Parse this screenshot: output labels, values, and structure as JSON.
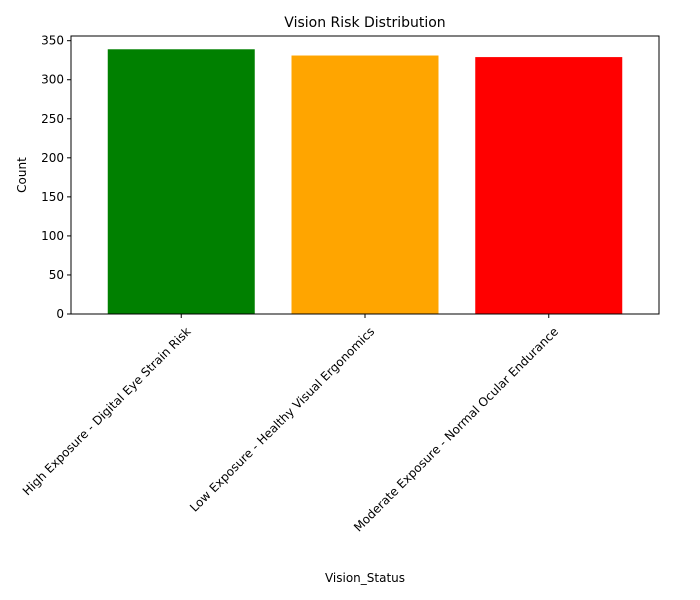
{
  "chart_data": {
    "type": "bar",
    "title": "Vision Risk Distribution",
    "xlabel": "Vision_Status",
    "ylabel": "Count",
    "categories": [
      "High Exposure - Digital Eye Strain Risk",
      "Low Exposure - Healthy Visual Ergonomics",
      "Moderate Exposure - Normal Ocular Endurance"
    ],
    "values": [
      339,
      331,
      329
    ],
    "colors": [
      "#008000",
      "#ffa500",
      "#ff0000"
    ],
    "ylim": [
      0,
      356
    ],
    "yticks": [
      0,
      50,
      100,
      150,
      200,
      250,
      300,
      350
    ],
    "xtick_rotation": 45,
    "grid": false,
    "legend": "none"
  }
}
